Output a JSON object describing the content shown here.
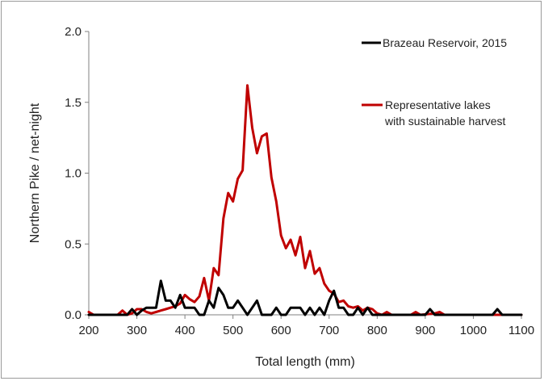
{
  "chart_data": {
    "type": "line",
    "xlabel": "Total length (mm)",
    "ylabel": "Northern Pike / net-night",
    "xlim": [
      200,
      1100
    ],
    "ylim": [
      0,
      2.0
    ],
    "x_ticks": [
      "200",
      "300",
      "400",
      "500",
      "600",
      "700",
      "800",
      "900",
      "1000",
      "1100"
    ],
    "y_ticks": [
      "0.0",
      "0.5",
      "1.0",
      "1.5",
      "2.0"
    ],
    "grid": false,
    "legend_placement": "top-right",
    "series": [
      {
        "name": "Brazeau Reservoir, 2015",
        "color": "#000000",
        "points": [
          [
            200,
            0
          ],
          [
            280,
            0
          ],
          [
            290,
            0.04
          ],
          [
            300,
            0
          ],
          [
            310,
            0.03
          ],
          [
            320,
            0.05
          ],
          [
            330,
            0.05
          ],
          [
            340,
            0.05
          ],
          [
            350,
            0.24
          ],
          [
            360,
            0.1
          ],
          [
            370,
            0.1
          ],
          [
            380,
            0.05
          ],
          [
            390,
            0.14
          ],
          [
            400,
            0.05
          ],
          [
            410,
            0.05
          ],
          [
            420,
            0.05
          ],
          [
            430,
            0
          ],
          [
            440,
            0
          ],
          [
            450,
            0.1
          ],
          [
            460,
            0.05
          ],
          [
            470,
            0.19
          ],
          [
            480,
            0.14
          ],
          [
            490,
            0.05
          ],
          [
            500,
            0.05
          ],
          [
            510,
            0.1
          ],
          [
            520,
            0.05
          ],
          [
            530,
            0
          ],
          [
            540,
            0.05
          ],
          [
            550,
            0.1
          ],
          [
            560,
            0
          ],
          [
            570,
            0
          ],
          [
            580,
            0
          ],
          [
            590,
            0.05
          ],
          [
            600,
            0
          ],
          [
            610,
            0
          ],
          [
            620,
            0.05
          ],
          [
            630,
            0.05
          ],
          [
            640,
            0.05
          ],
          [
            650,
            0
          ],
          [
            660,
            0.05
          ],
          [
            670,
            0
          ],
          [
            680,
            0.05
          ],
          [
            690,
            0
          ],
          [
            700,
            0.1
          ],
          [
            710,
            0.17
          ],
          [
            720,
            0.05
          ],
          [
            730,
            0.05
          ],
          [
            740,
            0
          ],
          [
            750,
            0
          ],
          [
            760,
            0.05
          ],
          [
            770,
            0
          ],
          [
            780,
            0.05
          ],
          [
            790,
            0
          ],
          [
            900,
            0
          ],
          [
            910,
            0.04
          ],
          [
            920,
            0
          ],
          [
            1040,
            0
          ],
          [
            1050,
            0.04
          ],
          [
            1060,
            0
          ],
          [
            1100,
            0
          ]
        ]
      },
      {
        "name": "Representative lakes with sustainable harvest",
        "legend_lines": [
          "Representative lakes",
          "with sustainable harvest"
        ],
        "color": "#c00000",
        "points": [
          [
            200,
            0.02
          ],
          [
            210,
            0
          ],
          [
            260,
            0
          ],
          [
            270,
            0.03
          ],
          [
            280,
            0
          ],
          [
            290,
            0.01
          ],
          [
            300,
            0.04
          ],
          [
            310,
            0.04
          ],
          [
            320,
            0.02
          ],
          [
            330,
            0.01
          ],
          [
            340,
            0.02
          ],
          [
            350,
            0.03
          ],
          [
            360,
            0.04
          ],
          [
            370,
            0.05
          ],
          [
            380,
            0.06
          ],
          [
            390,
            0.08
          ],
          [
            400,
            0.14
          ],
          [
            410,
            0.11
          ],
          [
            420,
            0.09
          ],
          [
            430,
            0.13
          ],
          [
            440,
            0.26
          ],
          [
            450,
            0.1
          ],
          [
            460,
            0.33
          ],
          [
            470,
            0.28
          ],
          [
            480,
            0.68
          ],
          [
            490,
            0.86
          ],
          [
            500,
            0.8
          ],
          [
            510,
            0.96
          ],
          [
            520,
            1.02
          ],
          [
            530,
            1.62
          ],
          [
            540,
            1.32
          ],
          [
            550,
            1.14
          ],
          [
            560,
            1.26
          ],
          [
            570,
            1.28
          ],
          [
            580,
            0.97
          ],
          [
            590,
            0.8
          ],
          [
            600,
            0.56
          ],
          [
            610,
            0.47
          ],
          [
            620,
            0.53
          ],
          [
            630,
            0.42
          ],
          [
            640,
            0.55
          ],
          [
            650,
            0.33
          ],
          [
            660,
            0.45
          ],
          [
            670,
            0.29
          ],
          [
            680,
            0.33
          ],
          [
            690,
            0.22
          ],
          [
            700,
            0.17
          ],
          [
            710,
            0.15
          ],
          [
            720,
            0.09
          ],
          [
            730,
            0.1
          ],
          [
            740,
            0.06
          ],
          [
            750,
            0.05
          ],
          [
            760,
            0.06
          ],
          [
            770,
            0.03
          ],
          [
            780,
            0.05
          ],
          [
            790,
            0.04
          ],
          [
            800,
            0.01
          ],
          [
            810,
            0.0
          ],
          [
            820,
            0.02
          ],
          [
            830,
            0.0
          ],
          [
            870,
            0.0
          ],
          [
            880,
            0.02
          ],
          [
            890,
            0.0
          ],
          [
            920,
            0.01
          ],
          [
            930,
            0.02
          ],
          [
            940,
            0
          ],
          [
            1100,
            0
          ]
        ]
      }
    ]
  }
}
